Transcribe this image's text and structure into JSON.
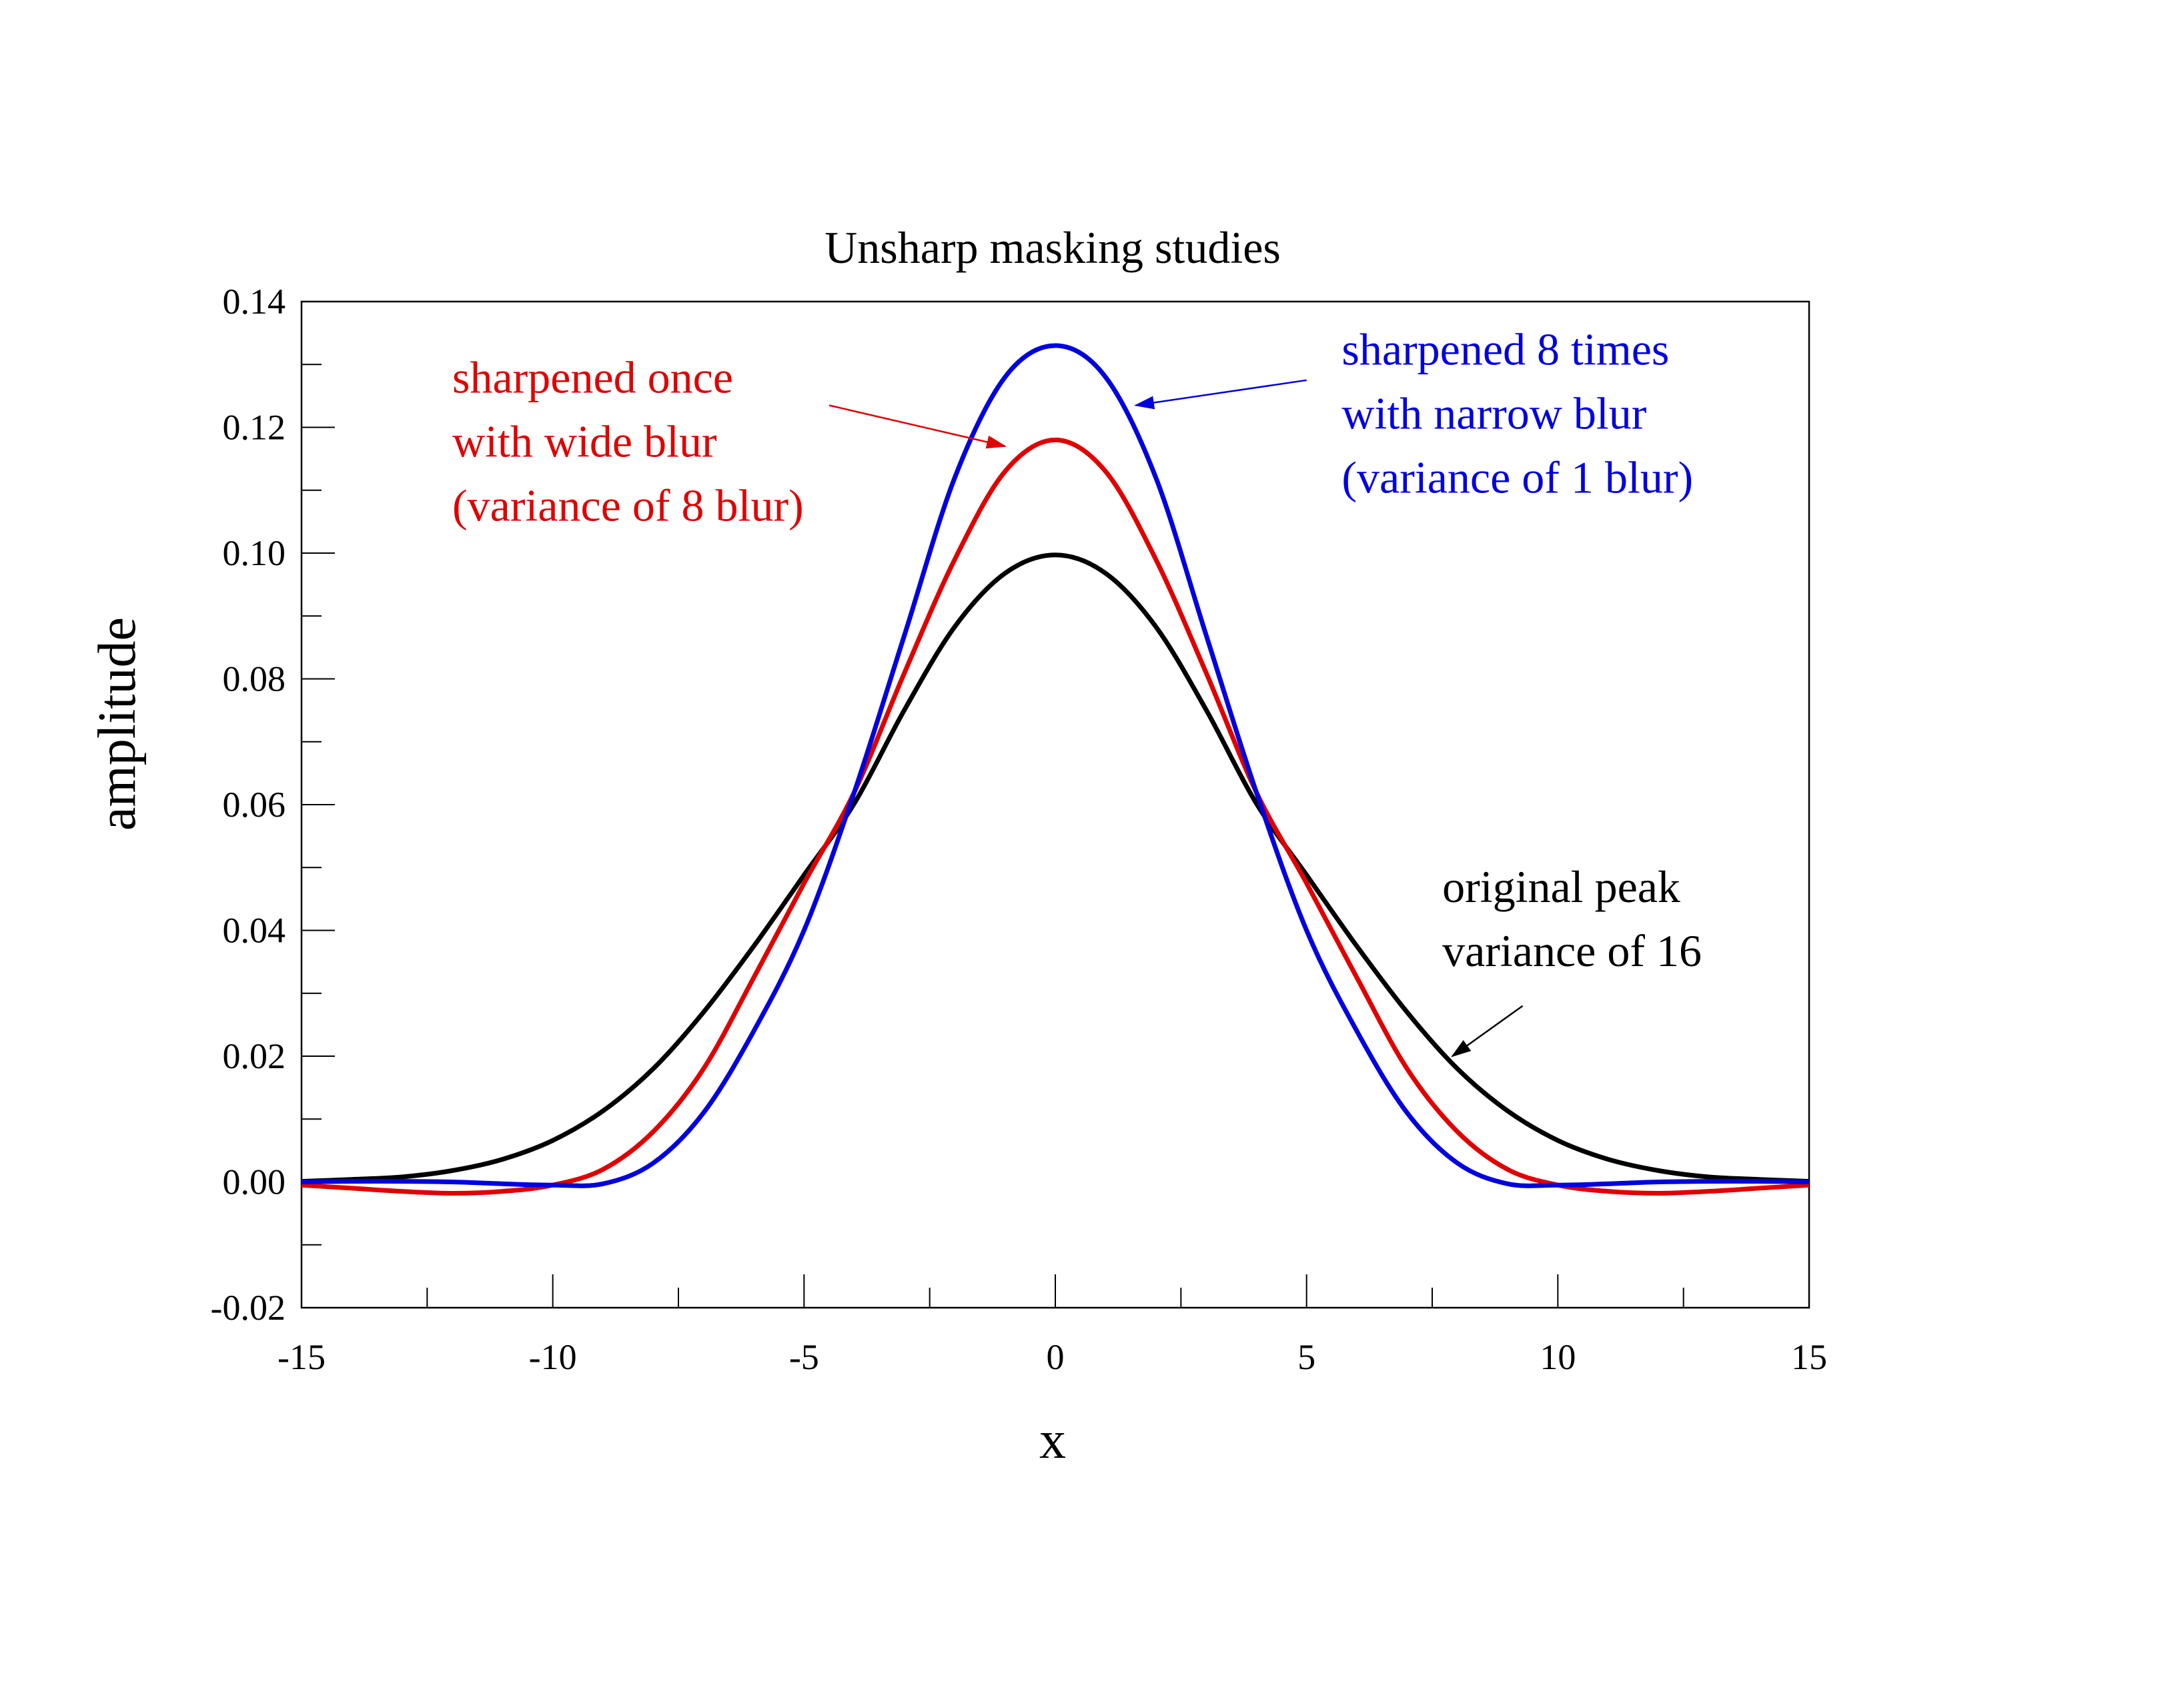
{
  "chart_data": {
    "type": "line",
    "title": "Unsharp masking studies",
    "xlabel": "x",
    "ylabel": "amplitude",
    "xlim": [
      -15,
      15
    ],
    "ylim": [
      -0.02,
      0.14
    ],
    "x_ticks": [
      -15,
      -10,
      -5,
      0,
      5,
      10,
      15
    ],
    "x_tick_labels": [
      "-15",
      "-10",
      "-5",
      "0",
      "5",
      "10",
      "15"
    ],
    "y_ticks": [
      -0.02,
      0.0,
      0.02,
      0.04,
      0.06,
      0.08,
      0.1,
      0.12,
      0.14
    ],
    "y_tick_labels": [
      "-0.02",
      "0.00",
      "0.02",
      "0.04",
      "0.06",
      "0.08",
      "0.10",
      "0.12",
      "0.14"
    ],
    "x_minor_step": 2.5,
    "y_minor_step": 0.01,
    "grid": false,
    "legend": "none",
    "x": [
      -15,
      -14,
      -13,
      -12,
      -11,
      -10,
      -9,
      -8,
      -7,
      -6,
      -5,
      -4,
      -3,
      -2,
      -1,
      0,
      1,
      2,
      3,
      4,
      5,
      6,
      7,
      8,
      9,
      10,
      11,
      12,
      13,
      14,
      15
    ],
    "series": [
      {
        "name": "original peak variance of 16",
        "color": "#000000",
        "values": [
          0.0001,
          0.0004,
          0.0008,
          0.0018,
          0.0036,
          0.0066,
          0.0113,
          0.018,
          0.027,
          0.0375,
          0.0488,
          0.0602,
          0.0751,
          0.0883,
          0.0968,
          0.0997,
          0.0968,
          0.0883,
          0.0751,
          0.0602,
          0.0488,
          0.0375,
          0.027,
          0.018,
          0.0113,
          0.0066,
          0.0036,
          0.0018,
          0.0008,
          0.0004,
          0.0001
        ]
      },
      {
        "name": "sharpened once with wide blur (variance of 8 blur)",
        "color": "#e00000",
        "values": [
          -0.0005,
          -0.001,
          -0.0015,
          -0.0018,
          -0.0015,
          -0.0005,
          0.002,
          0.008,
          0.018,
          0.0325,
          0.0475,
          0.062,
          0.081,
          0.099,
          0.113,
          0.118,
          0.113,
          0.099,
          0.081,
          0.062,
          0.0475,
          0.0325,
          0.018,
          0.008,
          0.002,
          -0.0005,
          -0.0015,
          -0.0018,
          -0.0015,
          -0.001,
          -0.0005
        ]
      },
      {
        "name": "sharpened 8 times with narrow blur (variance of 1 blur)",
        "color": "#0000e0",
        "values": [
          0.0,
          0.0001,
          0.0001,
          0.0,
          -0.0003,
          -0.0005,
          -0.0003,
          0.003,
          0.011,
          0.024,
          0.04,
          0.062,
          0.087,
          0.112,
          0.128,
          0.133,
          0.128,
          0.112,
          0.087,
          0.062,
          0.04,
          0.024,
          0.011,
          0.003,
          -0.0003,
          -0.0005,
          -0.0003,
          0.0,
          0.0001,
          0.0001,
          0.0
        ]
      }
    ],
    "annotations": [
      {
        "lines": [
          "sharpened once",
          "with wide blur",
          "(variance of 8 blur)"
        ],
        "color": "#e00000",
        "text_anchor": [
          -12.0,
          0.1255
        ],
        "arrow_from": [
          -4.5,
          0.1235
        ],
        "arrow_to": [
          -1.0,
          0.117
        ]
      },
      {
        "lines": [
          "sharpened 8 times",
          "with narrow blur",
          "(variance of 1 blur)"
        ],
        "color": "#0000e0",
        "text_anchor": [
          5.7,
          0.13
        ],
        "arrow_from": [
          5.0,
          0.1275
        ],
        "arrow_to": [
          1.6,
          0.1235
        ]
      },
      {
        "lines": [
          "original peak",
          "variance of 16"
        ],
        "color": "#000000",
        "text_anchor": [
          7.7,
          0.0445
        ],
        "arrow_from": [
          9.3,
          0.028
        ],
        "arrow_to": [
          7.9,
          0.02
        ]
      }
    ]
  }
}
